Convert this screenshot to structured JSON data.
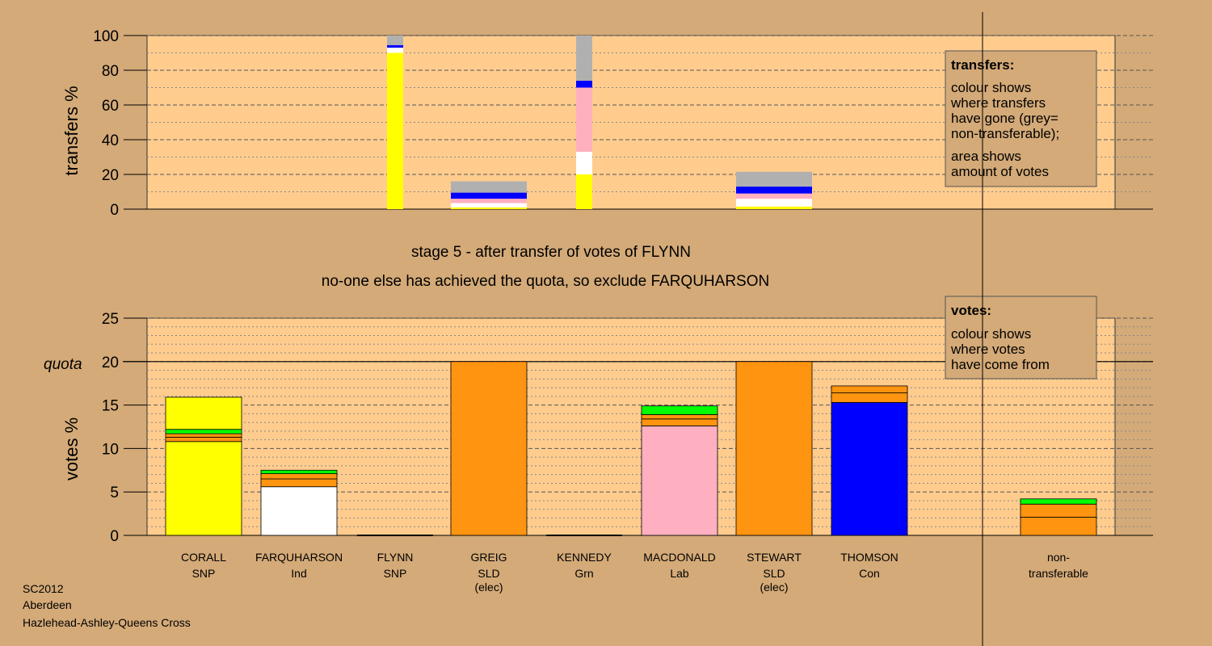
{
  "colors": {
    "page_bg": "#d4aa78",
    "plot_bg": "#ffcc8e",
    "SNP": "#ffff00",
    "Ind": "#ffffff",
    "SLD": "#ff9410",
    "Grn": "#00ff00",
    "Lab": "#ffb0c0",
    "Con": "#0000ff",
    "nontransferable": "#b0b0b0"
  },
  "stage_text": {
    "line1": "stage 5 - after transfer of votes of FLYNN",
    "line2": "no-one else has achieved the quota, so exclude FARQUHARSON"
  },
  "footer": {
    "line1": "SC2012",
    "line2": "Aberdeen",
    "line3": "Hazlehead-Ashley-Queens Cross"
  },
  "legend_transfers": {
    "title": "transfers:",
    "lines_a": [
      "colour shows",
      "where transfers",
      "have gone (grey=",
      "non-transferable);"
    ],
    "lines_b": [
      "area shows",
      "amount of votes"
    ]
  },
  "legend_votes": {
    "title": "votes:",
    "lines": [
      "colour shows",
      "where votes",
      "have come from"
    ]
  },
  "chart_data": [
    {
      "type": "bar",
      "id": "transfers",
      "ylabel": "transfers %",
      "ylim": [
        0,
        100
      ],
      "yticks": [
        "0",
        "20",
        "40",
        "60",
        "80",
        "100"
      ],
      "grid": true,
      "legend_position": "top-right",
      "bars": [
        {
          "candidate": "FLYNN",
          "width": "narrow",
          "segments": [
            {
              "party": "SNP",
              "from": 0,
              "to": 90
            },
            {
              "party": "Ind",
              "from": 90,
              "to": 93
            },
            {
              "party": "Con",
              "from": 93,
              "to": 94.5
            },
            {
              "party": "nontransferable",
              "from": 94.5,
              "to": 100
            }
          ]
        },
        {
          "candidate": "GREIG",
          "width": "wide",
          "segments": [
            {
              "party": "SNP",
              "from": 0,
              "to": 1
            },
            {
              "party": "Ind",
              "from": 1,
              "to": 3.5
            },
            {
              "party": "Lab",
              "from": 3.5,
              "to": 6
            },
            {
              "party": "Con",
              "from": 6,
              "to": 9.5
            },
            {
              "party": "nontransferable",
              "from": 9.5,
              "to": 16
            }
          ]
        },
        {
          "candidate": "KENNEDY",
          "width": "narrow",
          "segments": [
            {
              "party": "SNP",
              "from": 0,
              "to": 20
            },
            {
              "party": "Ind",
              "from": 20,
              "to": 33
            },
            {
              "party": "Lab",
              "from": 33,
              "to": 70
            },
            {
              "party": "Con",
              "from": 70,
              "to": 74
            },
            {
              "party": "nontransferable",
              "from": 74,
              "to": 100
            }
          ]
        },
        {
          "candidate": "STEWART",
          "width": "wide",
          "segments": [
            {
              "party": "SNP",
              "from": 0,
              "to": 1.5
            },
            {
              "party": "Ind",
              "from": 1.5,
              "to": 6
            },
            {
              "party": "Lab",
              "from": 6,
              "to": 9
            },
            {
              "party": "Con",
              "from": 9,
              "to": 13
            },
            {
              "party": "nontransferable",
              "from": 13,
              "to": 21.5
            }
          ]
        }
      ]
    },
    {
      "type": "bar",
      "id": "votes",
      "ylabel": "votes %",
      "ylim": [
        0,
        25
      ],
      "yticks": [
        "0",
        "5",
        "10",
        "15",
        "20",
        "25"
      ],
      "quota": 20,
      "quota_label": "quota",
      "grid": true,
      "legend_position": "top-right",
      "categories": [
        {
          "name": "CORALL",
          "party": "SNP",
          "note": ""
        },
        {
          "name": "FARQUHARSON",
          "party": "Ind",
          "note": ""
        },
        {
          "name": "FLYNN",
          "party": "SNP",
          "note": ""
        },
        {
          "name": "GREIG",
          "party": "SLD",
          "note": "(elec)"
        },
        {
          "name": "KENNEDY",
          "party": "Grn",
          "note": ""
        },
        {
          "name": "MACDONALD",
          "party": "Lab",
          "note": ""
        },
        {
          "name": "STEWART",
          "party": "SLD",
          "note": "(elec)"
        },
        {
          "name": "THOMSON",
          "party": "Con",
          "note": ""
        },
        {
          "name": "non-",
          "party": "transferable",
          "note": ""
        }
      ],
      "stacks": [
        [
          {
            "party": "SNP",
            "value": 10.8
          },
          {
            "party": "SLD",
            "value": 0.5
          },
          {
            "party": "SLD",
            "value": 0.4
          },
          {
            "party": "Grn",
            "value": 0.5
          },
          {
            "party": "SNP",
            "value": 3.7
          }
        ],
        [
          {
            "party": "Ind",
            "value": 5.6
          },
          {
            "party": "SLD",
            "value": 0.9
          },
          {
            "party": "SLD",
            "value": 0.6
          },
          {
            "party": "Grn",
            "value": 0.4
          }
        ],
        [],
        [
          {
            "party": "SLD",
            "value": 20.0
          }
        ],
        [],
        [
          {
            "party": "Lab",
            "value": 12.6
          },
          {
            "party": "SLD",
            "value": 0.8
          },
          {
            "party": "SLD",
            "value": 0.5
          },
          {
            "party": "Grn",
            "value": 1.0
          }
        ],
        [
          {
            "party": "SLD",
            "value": 20.0
          }
        ],
        [
          {
            "party": "Con",
            "value": 15.3
          },
          {
            "party": "SLD",
            "value": 1.1
          },
          {
            "party": "SLD",
            "value": 0.8
          }
        ],
        [
          {
            "party": "SLD",
            "value": 2.1
          },
          {
            "party": "SLD",
            "value": 1.5
          },
          {
            "party": "Grn",
            "value": 0.6
          }
        ]
      ]
    }
  ]
}
